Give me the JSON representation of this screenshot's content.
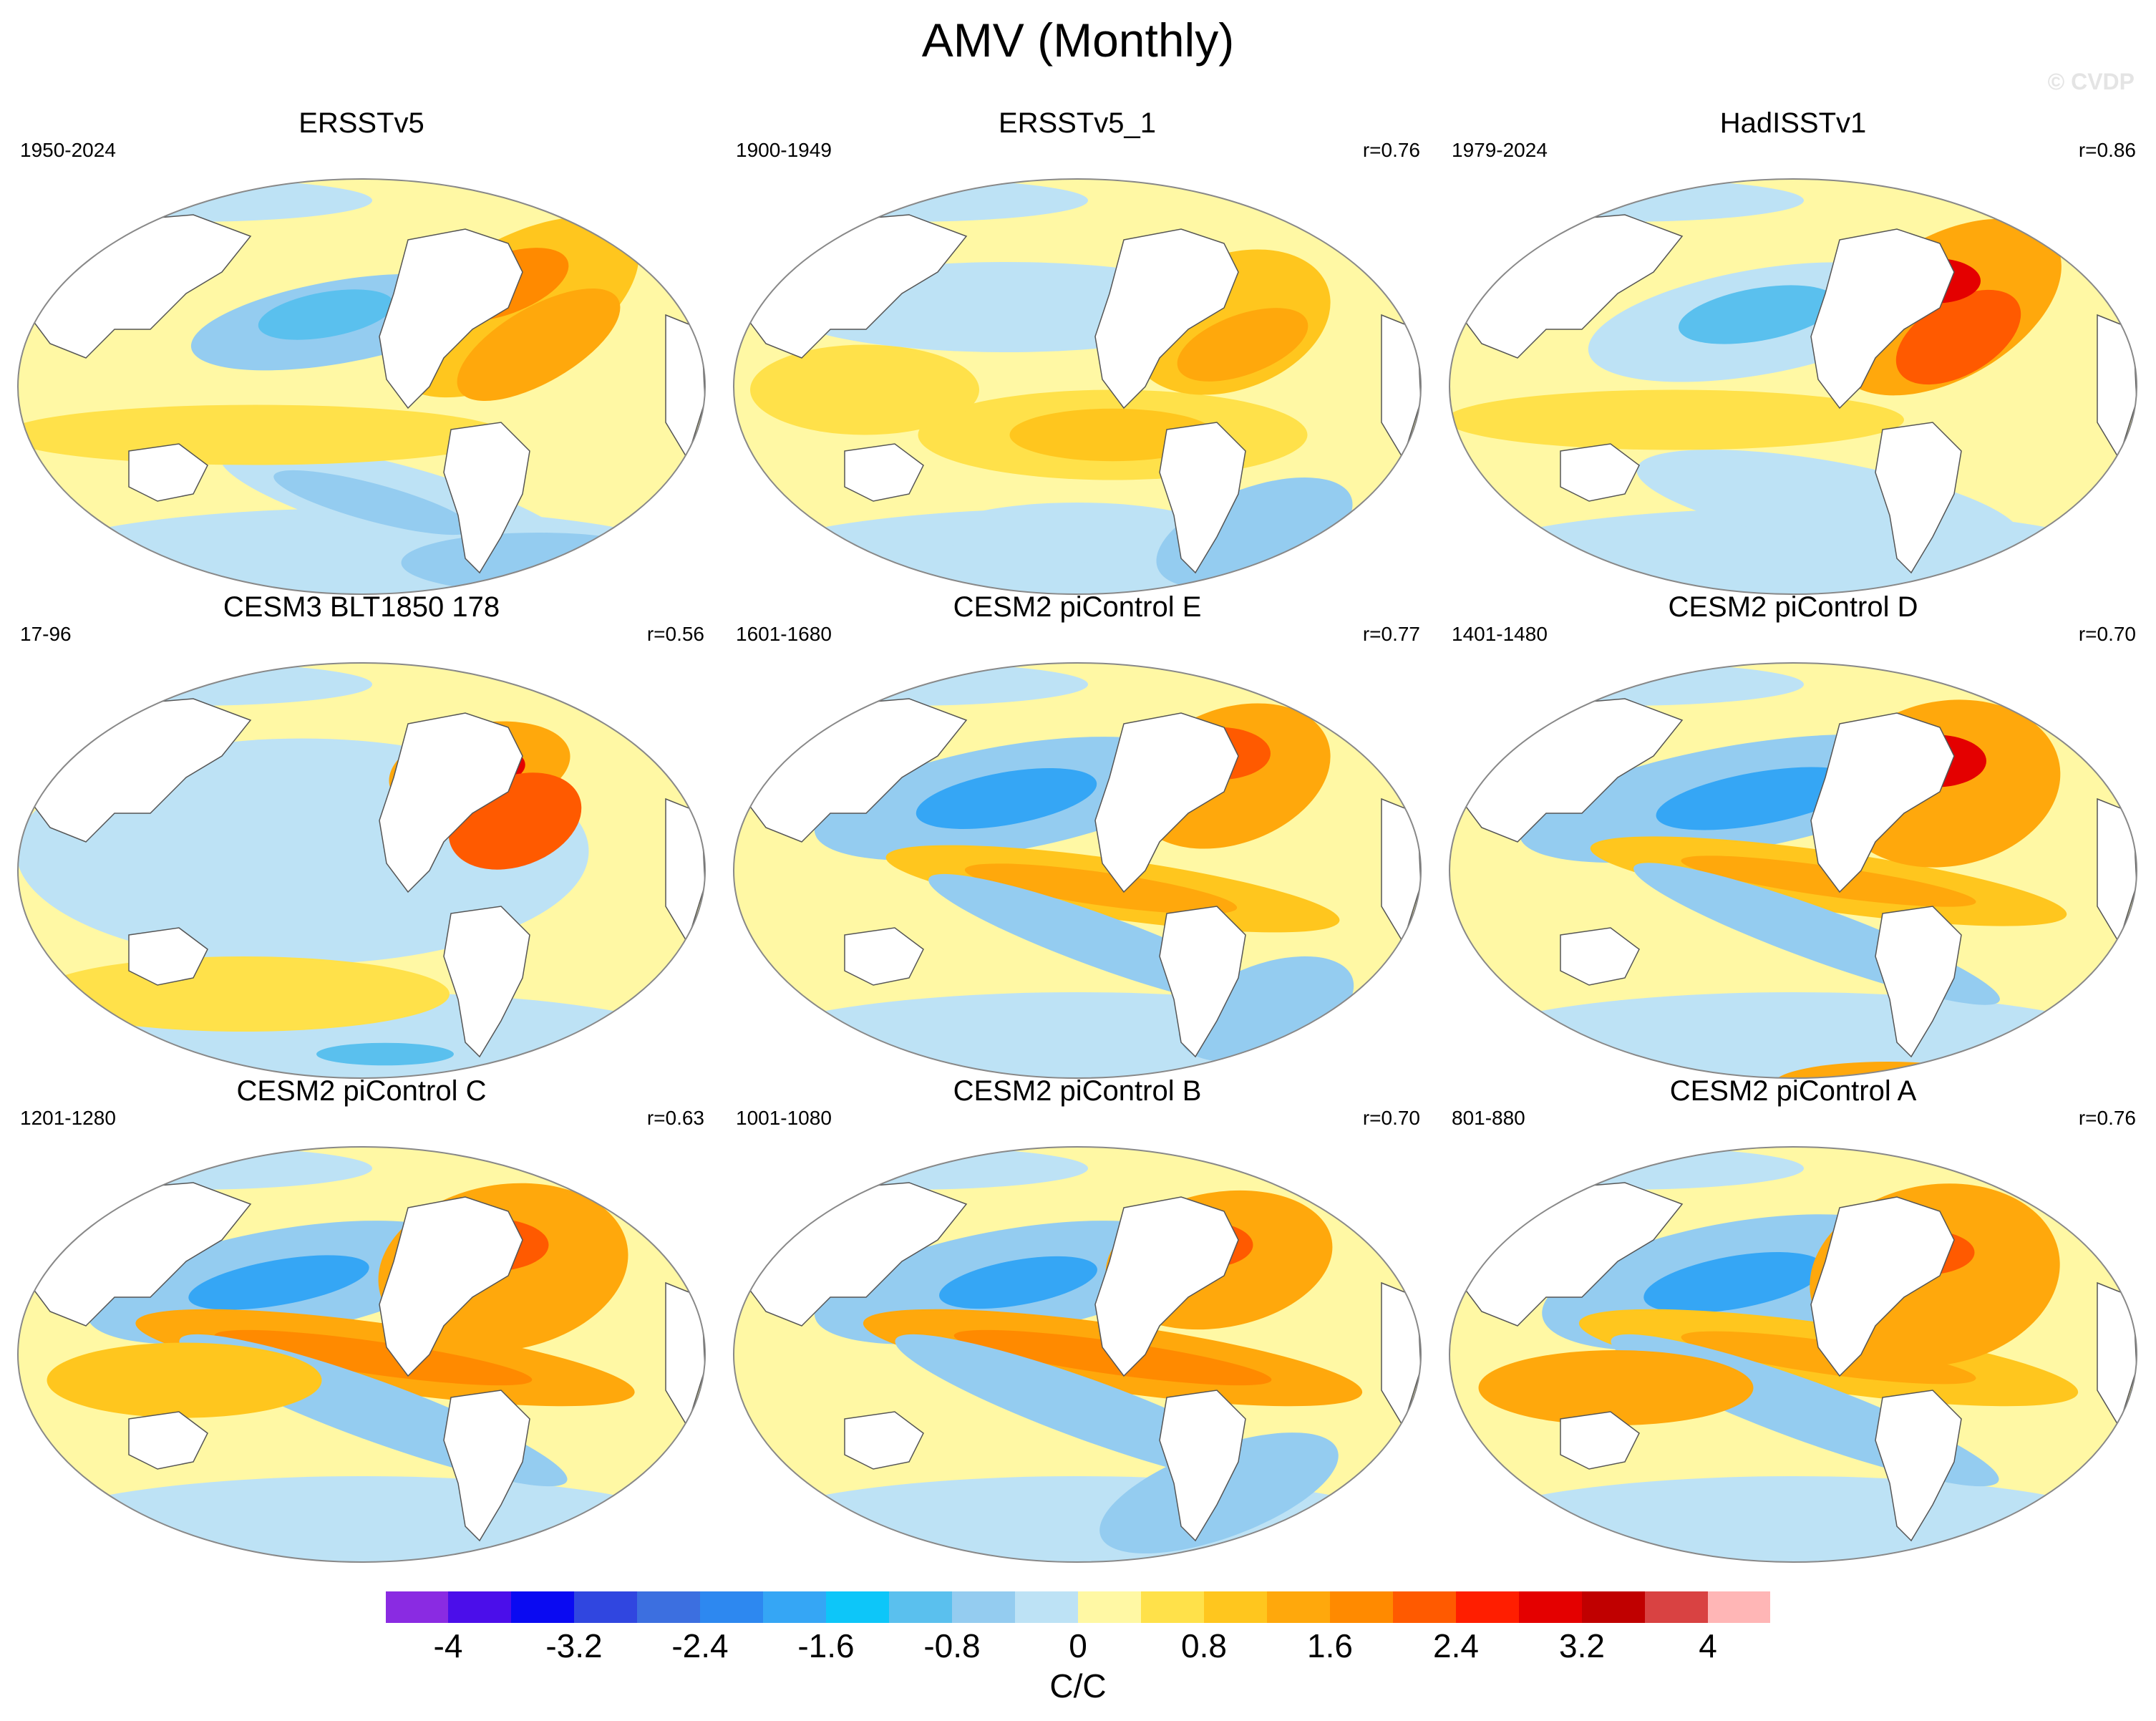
{
  "title": "AMV (Monthly)",
  "watermark": "© CVDP",
  "panels": [
    {
      "title": "ERSSTv5",
      "years": "1950-2024",
      "r": ""
    },
    {
      "title": "ERSSTv5_1",
      "years": "1900-1949",
      "r": "r=0.76"
    },
    {
      "title": "HadISSTv1",
      "years": "1979-2024",
      "r": "r=0.86"
    },
    {
      "title": "CESM3 BLT1850 178",
      "years": "17-96",
      "r": "r=0.56"
    },
    {
      "title": "CESM2 piControl E",
      "years": "1601-1680",
      "r": "r=0.77"
    },
    {
      "title": "CESM2 piControl D",
      "years": "1401-1480",
      "r": "r=0.70"
    },
    {
      "title": "CESM2 piControl C",
      "years": "1201-1280",
      "r": "r=0.63"
    },
    {
      "title": "CESM2 piControl B",
      "years": "1001-1080",
      "r": "r=0.70"
    },
    {
      "title": "CESM2 piControl A",
      "years": "801-880",
      "r": "r=0.76"
    }
  ],
  "colorbar": {
    "units": "C/C",
    "tick_labels": [
      "-4",
      "-3.2",
      "-2.4",
      "-1.6",
      "-0.8",
      "0",
      "0.8",
      "1.6",
      "2.4",
      "3.2",
      "4"
    ],
    "colors": [
      "#8a2be2",
      "#4b0eea",
      "#0a0af2",
      "#3046e0",
      "#3c6fe0",
      "#2d88f0",
      "#35a6f5",
      "#0dc6f9",
      "#5ac0ee",
      "#94ccf0",
      "#bde2f5",
      "#fff8a4",
      "#ffe14a",
      "#ffc61e",
      "#ffa80c",
      "#ff8a00",
      "#ff5a00",
      "#ff1e00",
      "#e40000",
      "#c00000",
      "#d94242",
      "#ffb6b6"
    ]
  },
  "colors": {
    "land": "#ffffff",
    "coast": "#555555",
    "map_border": "#888888"
  }
}
